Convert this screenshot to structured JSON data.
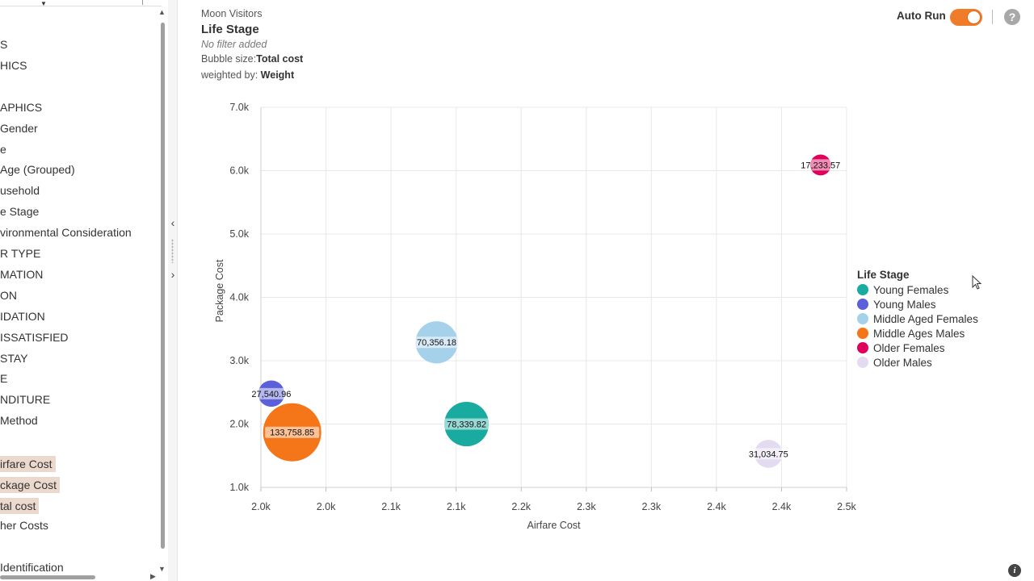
{
  "sidebar": {
    "items": [
      {
        "label": "S"
      },
      {
        "label": "HICS"
      },
      {
        "label": ""
      },
      {
        "label": "APHICS"
      },
      {
        "label": " Gender"
      },
      {
        "label": "e"
      },
      {
        "label": " Age (Grouped)"
      },
      {
        "label": "usehold"
      },
      {
        "label": "e Stage"
      },
      {
        "label": "vironmental Consideration"
      },
      {
        "label": "R TYPE"
      },
      {
        "label": "MATION"
      },
      {
        "label": "ON"
      },
      {
        "label": "IDATION"
      },
      {
        "label": "ISSATISFIED"
      },
      {
        "label": " STAY"
      },
      {
        "label": "E"
      },
      {
        "label": "NDITURE"
      },
      {
        "label": "Method"
      },
      {
        "label": ""
      },
      {
        "label": "irfare Cost",
        "selected": true
      },
      {
        "label": "ckage Cost",
        "selected": true
      },
      {
        "label": "tal cost",
        "selected": true
      },
      {
        "label": "her Costs"
      },
      {
        "label": ""
      },
      {
        "label": "Identification"
      }
    ]
  },
  "header": {
    "dataset": "Moon Visitors",
    "title": "Life Stage",
    "filter": "No filter added",
    "bubble_size_label": "Bubble size:",
    "bubble_size_value": "Total cost",
    "weighted_label": "weighted by:",
    "weighted_value": "Weight"
  },
  "toolbar": {
    "auto_run_label": "Auto Run",
    "auto_run_on": true,
    "help_icon": "question-circle-icon",
    "help_glyph": "?"
  },
  "footer": {
    "info_icon": "info-icon",
    "info_glyph": "i"
  },
  "splitter": {
    "collapse_glyph": "‹",
    "expand_glyph": "›"
  },
  "colors": {
    "accent": "#f07c2a",
    "selected_row": "#ecd9cd"
  },
  "chart_data": {
    "type": "scatter",
    "subtype": "bubble",
    "xlabel": "Airfare Cost",
    "ylabel": "Package Cost",
    "xlim": [
      2000,
      2450
    ],
    "ylim": [
      1000,
      7000
    ],
    "x_tick_labels": [
      "2.0k",
      "2.0k",
      "2.1k",
      "2.1k",
      "2.2k",
      "2.3k",
      "2.3k",
      "2.4k",
      "2.4k",
      "2.5k"
    ],
    "x_tick_values": [
      2000,
      2050,
      2100,
      2150,
      2200,
      2250,
      2300,
      2350,
      2400,
      2450
    ],
    "y_tick_labels": [
      "1.0k",
      "2.0k",
      "3.0k",
      "4.0k",
      "5.0k",
      "6.0k",
      "7.0k"
    ],
    "y_tick_values": [
      1000,
      2000,
      3000,
      4000,
      5000,
      6000,
      7000
    ],
    "grid": true,
    "legend_title": "Life Stage",
    "legend_position": "right",
    "series": [
      {
        "name": "Young Females",
        "color": "#1aaba0",
        "x": 2158,
        "y": 2000,
        "size": 78339.82,
        "label": "78,339.82"
      },
      {
        "name": "Young Males",
        "color": "#5b5fd9",
        "x": 2008,
        "y": 2480,
        "size": 27540.96,
        "label": "27,540.96"
      },
      {
        "name": "Middle Aged Females",
        "color": "#a6d1ea",
        "x": 2135,
        "y": 3290,
        "size": 70356.18,
        "label": "70,356.18"
      },
      {
        "name": "Middle Ages Males",
        "color": "#f57519",
        "x": 2024,
        "y": 1870,
        "size": 133758.85,
        "label": "133,758.85"
      },
      {
        "name": "Older Females",
        "color": "#e0005b",
        "x": 2430,
        "y": 6090,
        "size": 17233.57,
        "label": "17,233.57"
      },
      {
        "name": "Older Males",
        "color": "#e3dcf1",
        "x": 2390,
        "y": 1530,
        "size": 31034.75,
        "label": "31,034.75"
      }
    ]
  }
}
